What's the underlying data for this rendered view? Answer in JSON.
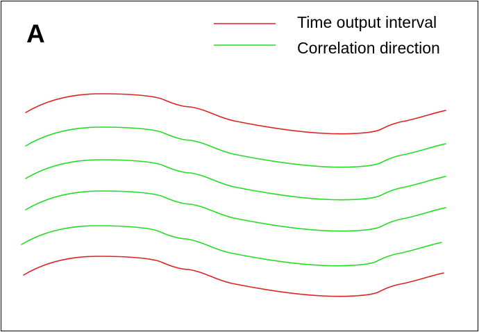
{
  "panel_label": "A",
  "legend": [
    {
      "label": "Time output interval",
      "color": "#dd2222"
    },
    {
      "label": "Correlation direction",
      "color": "#22dd22"
    }
  ],
  "curves": [
    {
      "color": "#dd2222"
    },
    {
      "color": "#22dd22"
    },
    {
      "color": "#22dd22"
    },
    {
      "color": "#22dd22"
    },
    {
      "color": "#22dd22"
    },
    {
      "color": "#dd2222"
    }
  ]
}
